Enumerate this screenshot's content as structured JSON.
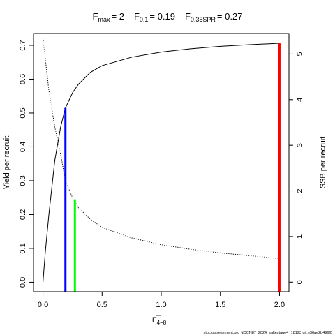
{
  "chart_data": {
    "type": "line",
    "title_parts": {
      "fmax_base": "F",
      "fmax_sub": "max",
      "fmax_val": "= 2",
      "f01_base": "F",
      "f01_sub": "0.1",
      "f01_val": "= 0.19",
      "fspr_base": "F",
      "fspr_sub": "0.35SPR",
      "fspr_val": "= 0.27"
    },
    "xlabel_base": "F",
    "xlabel_sub": "4−8",
    "ylabel_left": "Yield per recruit",
    "ylabel_right": "SSB per recruit",
    "xlim": [
      -0.08,
      2.08
    ],
    "ylim_left": [
      -0.028,
      0.735
    ],
    "ylim_right": [
      -0.21,
      5.45
    ],
    "x_ticks": [
      0,
      0.5,
      1,
      1.5,
      2
    ],
    "x_tick_labels": [
      "0.0",
      "0.5",
      "1.0",
      "1.5",
      "2.0"
    ],
    "y_left_ticks": [
      0,
      0.1,
      0.2,
      0.3,
      0.4,
      0.5,
      0.6,
      0.7
    ],
    "y_left_tick_labels": [
      "0.0",
      "0.1",
      "0.2",
      "0.3",
      "0.4",
      "0.5",
      "0.6",
      "0.7"
    ],
    "y_right_ticks": [
      0,
      1,
      2,
      3,
      4,
      5
    ],
    "y_right_tick_labels": [
      "0",
      "1",
      "2",
      "3",
      "4",
      "5"
    ],
    "series": [
      {
        "axis": "left",
        "style": "solid",
        "color": "#000000",
        "x": [
          0,
          0.02,
          0.05,
          0.1,
          0.15,
          0.19,
          0.25,
          0.3,
          0.4,
          0.5,
          0.75,
          1.0,
          1.25,
          1.5,
          1.75,
          2.0
        ],
        "y": [
          0,
          0.09,
          0.2,
          0.36,
          0.46,
          0.515,
          0.56,
          0.585,
          0.62,
          0.64,
          0.665,
          0.68,
          0.69,
          0.697,
          0.702,
          0.706
        ]
      },
      {
        "axis": "right",
        "style": "dotted",
        "color": "#000000",
        "x": [
          0,
          0.05,
          0.1,
          0.15,
          0.19,
          0.25,
          0.3,
          0.4,
          0.5,
          0.75,
          1.0,
          1.25,
          1.5,
          1.75,
          2.0
        ],
        "y": [
          5.35,
          4.2,
          3.4,
          2.8,
          2.22,
          1.85,
          1.63,
          1.38,
          1.2,
          0.97,
          0.82,
          0.72,
          0.64,
          0.58,
          0.52
        ]
      }
    ],
    "reference_lines": [
      {
        "label": "F0.1",
        "x": 0.19,
        "y_top": 0.515,
        "axis": "left",
        "color": "#0000ff"
      },
      {
        "label": "F0.35SPR",
        "x": 0.27,
        "y_top": 0.245,
        "axis": "left",
        "color": "#00ff00"
      },
      {
        "label": "Fmax",
        "x": 2.0,
        "y_top": 0.706,
        "axis": "left",
        "color": "#ff0000"
      }
    ],
    "footer": "stockassessment.org NCCN87_2024_saltestage4 r18123 git:e36ae2b496f0"
  }
}
